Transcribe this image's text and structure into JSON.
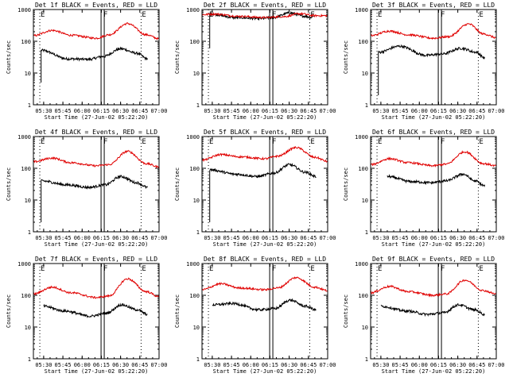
{
  "figure": {
    "ylabel": "Counts/sec",
    "xlabel": "Start Time (27-Jun-02 05:22:20)",
    "legend_text": "BLACK = Events, RED = LLD",
    "marker_labels": [
      "E",
      "F",
      "E"
    ],
    "colors": {
      "events": "#000000",
      "lld": "#e00000",
      "axes": "#000000",
      "background": "#ffffff"
    }
  },
  "chart_data": [
    {
      "type": "line",
      "title": "Det 1f BLACK = Events, RED = LLD",
      "ylabel": "Counts/sec",
      "xlabel": "Start Time (27-Jun-02 05:22:20)",
      "yscale": "log",
      "ylim": [
        1,
        1000
      ],
      "yticks": [
        "1",
        "10",
        "100",
        "1000"
      ],
      "xlim": [
        "05:22",
        "07:00"
      ],
      "xticks": [
        "05:30",
        "05:45",
        "06:00",
        "06:15",
        "06:30",
        "06:45",
        "07:00"
      ],
      "markers": [
        {
          "label": "E",
          "time": "05:27"
        },
        {
          "label": "F",
          "time": "06:16"
        },
        {
          "label": "E",
          "time": "06:46"
        }
      ],
      "series": [
        {
          "name": "Events",
          "color": "#000000",
          "start": "05:28",
          "end": "06:51",
          "onset": 5,
          "points": [
            [
              0.0,
              52
            ],
            [
              0.25,
              28
            ],
            [
              0.45,
              27
            ],
            [
              0.58,
              33
            ],
            [
              0.75,
              58
            ],
            [
              0.9,
              42
            ],
            [
              1.0,
              28
            ]
          ]
        },
        {
          "name": "LLD",
          "color": "#e00000",
          "start": "05:22",
          "end": "07:00",
          "points": [
            [
              0.0,
              150
            ],
            [
              0.15,
              220
            ],
            [
              0.3,
              155
            ],
            [
              0.5,
              125
            ],
            [
              0.6,
              160
            ],
            [
              0.75,
              360
            ],
            [
              0.9,
              160
            ],
            [
              1.0,
              120
            ]
          ]
        }
      ]
    },
    {
      "type": "line",
      "title": "Det 2f BLACK = Events, RED = LLD",
      "ylabel": "Counts/sec",
      "xlabel": "Start Time (27-Jun-02 05:22:20)",
      "yscale": "log",
      "ylim": [
        1,
        1000
      ],
      "yticks": [
        "1",
        "10",
        "100",
        "1000"
      ],
      "xlim": [
        "05:22",
        "07:00"
      ],
      "xticks": [
        "05:30",
        "05:45",
        "06:00",
        "06:15",
        "06:30",
        "06:45",
        "07:00"
      ],
      "markers": [
        {
          "label": "E",
          "time": "05:27"
        },
        {
          "label": "F",
          "time": "06:16"
        },
        {
          "label": "E",
          "time": "06:46"
        }
      ],
      "series": [
        {
          "name": "Events",
          "color": "#000000",
          "start": "05:28",
          "end": "06:48",
          "onset": 60,
          "points": [
            [
              0.0,
              730
            ],
            [
              0.25,
              560
            ],
            [
              0.5,
              520
            ],
            [
              0.62,
              560
            ],
            [
              0.78,
              780
            ],
            [
              0.92,
              620
            ],
            [
              1.0,
              560
            ]
          ]
        },
        {
          "name": "LLD",
          "color": "#e00000",
          "start": "05:22",
          "end": "07:00",
          "points": [
            [
              0.0,
              690
            ],
            [
              0.1,
              720
            ],
            [
              0.3,
              610
            ],
            [
              0.5,
              560
            ],
            [
              0.65,
              600
            ],
            [
              0.78,
              740
            ],
            [
              0.9,
              640
            ],
            [
              1.0,
              640
            ]
          ]
        }
      ]
    },
    {
      "type": "line",
      "title": "Det 3f BLACK = Events, RED = LLD",
      "ylabel": "Counts/sec",
      "xlabel": "Start Time (27-Jun-02 05:22:20)",
      "yscale": "log",
      "ylim": [
        1,
        1000
      ],
      "yticks": [
        "1",
        "10",
        "100",
        "1000"
      ],
      "xlim": [
        "05:22",
        "07:00"
      ],
      "xticks": [
        "05:30",
        "05:45",
        "06:00",
        "06:15",
        "06:30",
        "06:45",
        "07:00"
      ],
      "markers": [
        {
          "label": "E",
          "time": "05:27"
        },
        {
          "label": "F",
          "time": "06:16"
        },
        {
          "label": "E",
          "time": "06:46"
        }
      ],
      "series": [
        {
          "name": "Events",
          "color": "#000000",
          "start": "05:28",
          "end": "06:51",
          "onset": 2,
          "points": [
            [
              0.0,
              45
            ],
            [
              0.2,
              70
            ],
            [
              0.45,
              36
            ],
            [
              0.6,
              40
            ],
            [
              0.78,
              60
            ],
            [
              0.92,
              45
            ],
            [
              1.0,
              30
            ]
          ]
        },
        {
          "name": "LLD",
          "color": "#e00000",
          "start": "05:22",
          "end": "07:00",
          "points": [
            [
              0.0,
              150
            ],
            [
              0.15,
              210
            ],
            [
              0.3,
              160
            ],
            [
              0.5,
              125
            ],
            [
              0.62,
              140
            ],
            [
              0.78,
              350
            ],
            [
              0.9,
              170
            ],
            [
              1.0,
              130
            ]
          ]
        }
      ]
    },
    {
      "type": "line",
      "title": "Det 4f BLACK = Events, RED = LLD",
      "ylabel": "Counts/sec",
      "xlabel": "Start Time (27-Jun-02 05:22:20)",
      "yscale": "log",
      "ylim": [
        1,
        1000
      ],
      "yticks": [
        "1",
        "10",
        "100",
        "1000"
      ],
      "xlim": [
        "05:22",
        "07:00"
      ],
      "xticks": [
        "05:30",
        "05:45",
        "06:00",
        "06:15",
        "06:30",
        "06:45",
        "07:00"
      ],
      "markers": [
        {
          "label": "E",
          "time": "05:27"
        },
        {
          "label": "F",
          "time": "06:16"
        },
        {
          "label": "E",
          "time": "06:46"
        }
      ],
      "series": [
        {
          "name": "Events",
          "color": "#000000",
          "start": "05:28",
          "end": "06:51",
          "onset": 2,
          "points": [
            [
              0.0,
              40
            ],
            [
              0.25,
              30
            ],
            [
              0.45,
              25
            ],
            [
              0.6,
              30
            ],
            [
              0.75,
              55
            ],
            [
              0.9,
              35
            ],
            [
              1.0,
              25
            ]
          ]
        },
        {
          "name": "LLD",
          "color": "#e00000",
          "start": "05:22",
          "end": "07:00",
          "points": [
            [
              0.0,
              160
            ],
            [
              0.15,
              210
            ],
            [
              0.3,
              150
            ],
            [
              0.5,
              120
            ],
            [
              0.6,
              130
            ],
            [
              0.75,
              340
            ],
            [
              0.9,
              140
            ],
            [
              1.0,
              110
            ]
          ]
        }
      ]
    },
    {
      "type": "line",
      "title": "Det 5f BLACK = Events, RED = LLD",
      "ylabel": "Counts/sec",
      "xlabel": "Start Time (27-Jun-02 05:22:20)",
      "yscale": "log",
      "ylim": [
        1,
        1000
      ],
      "yticks": [
        "1",
        "10",
        "100",
        "1000"
      ],
      "xlim": [
        "05:22",
        "07:00"
      ],
      "xticks": [
        "05:30",
        "05:45",
        "06:00",
        "06:15",
        "06:30",
        "06:45",
        "07:00"
      ],
      "markers": [
        {
          "label": "E",
          "time": "05:27"
        },
        {
          "label": "F",
          "time": "06:16"
        },
        {
          "label": "E",
          "time": "06:46"
        }
      ],
      "series": [
        {
          "name": "Events",
          "color": "#000000",
          "start": "05:28",
          "end": "06:51",
          "onset": 2,
          "points": [
            [
              0.0,
              90
            ],
            [
              0.25,
              65
            ],
            [
              0.45,
              55
            ],
            [
              0.6,
              70
            ],
            [
              0.75,
              130
            ],
            [
              0.9,
              75
            ],
            [
              1.0,
              55
            ]
          ]
        },
        {
          "name": "LLD",
          "color": "#e00000",
          "start": "05:22",
          "end": "07:00",
          "points": [
            [
              0.0,
              180
            ],
            [
              0.15,
              270
            ],
            [
              0.3,
              230
            ],
            [
              0.5,
              200
            ],
            [
              0.6,
              240
            ],
            [
              0.75,
              450
            ],
            [
              0.9,
              220
            ],
            [
              1.0,
              165
            ]
          ]
        }
      ]
    },
    {
      "type": "line",
      "title": "Det 6f BLACK = Events, RED = LLD",
      "ylabel": "Counts/sec",
      "xlabel": "Start Time (27-Jun-02 05:22:20)",
      "yscale": "log",
      "ylim": [
        1,
        1000
      ],
      "yticks": [
        "1",
        "10",
        "100",
        "1000"
      ],
      "xlim": [
        "05:22",
        "07:00"
      ],
      "xticks": [
        "05:30",
        "05:45",
        "06:00",
        "06:15",
        "06:30",
        "06:45",
        "07:00"
      ],
      "markers": [
        {
          "label": "E",
          "time": "05:27"
        },
        {
          "label": "F",
          "time": "06:16"
        },
        {
          "label": "E",
          "time": "06:46"
        }
      ],
      "series": [
        {
          "name": "Events",
          "color": "#000000",
          "start": "05:35",
          "end": "06:51",
          "onset": null,
          "points": [
            [
              0.0,
              55
            ],
            [
              0.25,
              38
            ],
            [
              0.45,
              35
            ],
            [
              0.6,
              40
            ],
            [
              0.78,
              65
            ],
            [
              0.9,
              40
            ],
            [
              1.0,
              28
            ]
          ]
        },
        {
          "name": "LLD",
          "color": "#e00000",
          "start": "05:22",
          "end": "07:00",
          "points": [
            [
              0.0,
              130
            ],
            [
              0.15,
              200
            ],
            [
              0.3,
              150
            ],
            [
              0.5,
              120
            ],
            [
              0.6,
              135
            ],
            [
              0.75,
              330
            ],
            [
              0.9,
              140
            ],
            [
              1.0,
              120
            ]
          ]
        }
      ]
    },
    {
      "type": "line",
      "title": "Det 7f BLACK = Events, RED = LLD",
      "ylabel": "Counts/sec",
      "xlabel": "Start Time (27-Jun-02 05:22:20)",
      "yscale": "log",
      "ylim": [
        1,
        1000
      ],
      "yticks": [
        "1",
        "10",
        "100",
        "1000"
      ],
      "xlim": [
        "05:22",
        "07:00"
      ],
      "xticks": [
        "05:30",
        "05:45",
        "06:00",
        "06:15",
        "06:30",
        "06:45",
        "07:00"
      ],
      "markers": [
        {
          "label": "E",
          "time": "05:27"
        },
        {
          "label": "F",
          "time": "06:16"
        },
        {
          "label": "E",
          "time": "06:46"
        }
      ],
      "series": [
        {
          "name": "Events",
          "color": "#000000",
          "start": "05:30",
          "end": "06:51",
          "onset": null,
          "points": [
            [
              0.0,
              45
            ],
            [
              0.2,
              32
            ],
            [
              0.45,
              22
            ],
            [
              0.6,
              27
            ],
            [
              0.75,
              50
            ],
            [
              0.9,
              35
            ],
            [
              1.0,
              25
            ]
          ]
        },
        {
          "name": "LLD",
          "color": "#e00000",
          "start": "05:22",
          "end": "07:00",
          "points": [
            [
              0.0,
              110
            ],
            [
              0.15,
              180
            ],
            [
              0.3,
              120
            ],
            [
              0.5,
              85
            ],
            [
              0.6,
              95
            ],
            [
              0.75,
              330
            ],
            [
              0.9,
              130
            ],
            [
              1.0,
              90
            ]
          ]
        }
      ]
    },
    {
      "type": "line",
      "title": "Det 8f BLACK = Events, RED = LLD",
      "ylabel": "Counts/sec",
      "xlabel": "Start Time (27-Jun-02 05:22:20)",
      "yscale": "log",
      "ylim": [
        1,
        1000
      ],
      "yticks": [
        "1",
        "10",
        "100",
        "1000"
      ],
      "xlim": [
        "05:22",
        "07:00"
      ],
      "xticks": [
        "05:30",
        "05:45",
        "06:00",
        "06:15",
        "06:30",
        "06:45",
        "07:00"
      ],
      "markers": [
        {
          "label": "E",
          "time": "05:27"
        },
        {
          "label": "F",
          "time": "06:16"
        },
        {
          "label": "E",
          "time": "06:46"
        }
      ],
      "series": [
        {
          "name": "Events",
          "color": "#000000",
          "start": "05:30",
          "end": "06:51",
          "onset": null,
          "points": [
            [
              0.0,
              50
            ],
            [
              0.2,
              55
            ],
            [
              0.45,
              35
            ],
            [
              0.6,
              38
            ],
            [
              0.75,
              70
            ],
            [
              0.9,
              45
            ],
            [
              1.0,
              35
            ]
          ]
        },
        {
          "name": "LLD",
          "color": "#e00000",
          "start": "05:22",
          "end": "07:00",
          "points": [
            [
              0.0,
              150
            ],
            [
              0.15,
              230
            ],
            [
              0.3,
              170
            ],
            [
              0.5,
              150
            ],
            [
              0.6,
              170
            ],
            [
              0.75,
              360
            ],
            [
              0.9,
              180
            ],
            [
              1.0,
              140
            ]
          ]
        }
      ]
    },
    {
      "type": "line",
      "title": "Det 9f BLACK = Events, RED = LLD",
      "ylabel": "Counts/sec",
      "xlabel": "Start Time (27-Jun-02 05:22:20)",
      "yscale": "log",
      "ylim": [
        1,
        1000
      ],
      "yticks": [
        "1",
        "10",
        "100",
        "1000"
      ],
      "xlim": [
        "05:22",
        "07:00"
      ],
      "xticks": [
        "05:30",
        "05:45",
        "06:00",
        "06:15",
        "06:30",
        "06:45",
        "07:00"
      ],
      "markers": [
        {
          "label": "E",
          "time": "05:27"
        },
        {
          "label": "F",
          "time": "06:16"
        },
        {
          "label": "E",
          "time": "06:46"
        }
      ],
      "series": [
        {
          "name": "Events",
          "color": "#000000",
          "start": "05:30",
          "end": "06:51",
          "onset": null,
          "points": [
            [
              0.0,
              45
            ],
            [
              0.25,
              32
            ],
            [
              0.45,
              25
            ],
            [
              0.6,
              28
            ],
            [
              0.75,
              50
            ],
            [
              0.9,
              35
            ],
            [
              1.0,
              25
            ]
          ]
        },
        {
          "name": "LLD",
          "color": "#e00000",
          "start": "05:22",
          "end": "07:00",
          "points": [
            [
              0.0,
              120
            ],
            [
              0.15,
              190
            ],
            [
              0.3,
              130
            ],
            [
              0.5,
              100
            ],
            [
              0.6,
              110
            ],
            [
              0.75,
              300
            ],
            [
              0.9,
              140
            ],
            [
              1.0,
              110
            ]
          ]
        }
      ]
    }
  ]
}
